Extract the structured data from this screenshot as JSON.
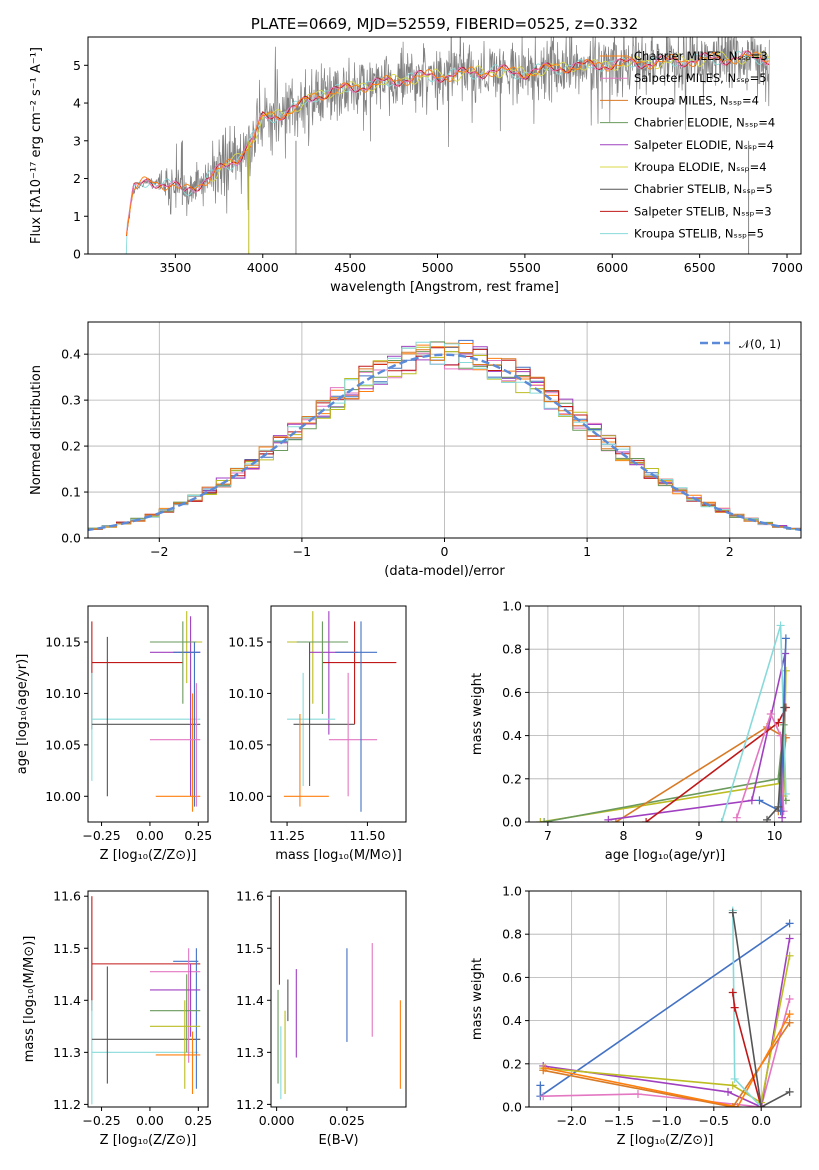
{
  "colors": {
    "palette": [
      "#4472c4",
      "#ff7f0e",
      "#e377c2",
      "#8c8c8c",
      "#2ca02c",
      "#9467bd",
      "#bcbd22",
      "#ff9896",
      "#17becf"
    ],
    "models": [
      "#ff7f0e",
      "#e377c2",
      "#d97a25",
      "#6a9a5c",
      "#a040c0",
      "#d8d84a",
      "#555555",
      "#c01818",
      "#88dada"
    ],
    "data_line": "#808080",
    "gaussian": "#5a8ad8"
  },
  "chart_data": [
    {
      "id": "spectrum",
      "type": "line",
      "title": "PLATE=0669, MJD=52559, FIBERID=0525, z=0.332",
      "xlabel": "wavelength [Angstrom, rest frame]",
      "ylabel": "Flux [fλ10⁻¹⁷ erg cm⁻² s⁻¹ A⁻¹]",
      "xlim": [
        3000,
        7080
      ],
      "ylim": [
        0,
        5.75
      ],
      "xticks": [
        "3500",
        "4000",
        "4500",
        "5000",
        "5500",
        "6000",
        "6500",
        "7000"
      ],
      "yticks": [
        "0",
        "1",
        "2",
        "3",
        "4",
        "5"
      ],
      "grid": false,
      "legend_placement": "top-right",
      "series": [
        {
          "name": "Chabrier MILES, Nₛₛₚ=3"
        },
        {
          "name": "Salpeter MILES, Nₛₛₚ=5"
        },
        {
          "name": "Kroupa MILES, Nₛₛₚ=4"
        },
        {
          "name": "Chabrier ELODIE, Nₛₛₚ=4"
        },
        {
          "name": "Salpeter ELODIE, Nₛₛₚ=4"
        },
        {
          "name": "Kroupa ELODIE, Nₛₛₚ=4"
        },
        {
          "name": "Chabrier STELIB, Nₛₛₚ=5"
        },
        {
          "name": "Salpeter STELIB, Nₛₛₚ=3"
        },
        {
          "name": "Kroupa STELIB, Nₛₛₚ=5"
        }
      ],
      "continuum": {
        "x": [
          3200,
          3260,
          3350,
          3450,
          3550,
          3650,
          3750,
          3850,
          3950,
          4000,
          4100,
          4200,
          4300,
          4400,
          4500,
          4700,
          4900,
          5100,
          5300,
          5500,
          5700,
          5900,
          6100,
          6300,
          6500,
          6700,
          6900
        ],
        "y": [
          0,
          1.7,
          1.95,
          1.85,
          1.65,
          1.9,
          2.2,
          2.5,
          3.1,
          3.6,
          3.7,
          3.9,
          4.2,
          4.3,
          4.4,
          4.55,
          4.7,
          4.75,
          4.85,
          4.8,
          4.95,
          5.0,
          5.05,
          5.1,
          5.15,
          5.2,
          5.2
        ]
      }
    },
    {
      "id": "residuals",
      "type": "area",
      "xlabel": "(data-model)/error",
      "ylabel": "Normed distribution",
      "xlim": [
        -2.5,
        2.5
      ],
      "ylim": [
        0,
        0.47
      ],
      "xticks": [
        "−2",
        "−1",
        "0",
        "1",
        "2"
      ],
      "yticks": [
        "0.0",
        "0.1",
        "0.2",
        "0.3",
        "0.4"
      ],
      "grid": true,
      "legend_placement": "top-right",
      "gaussian_label": "𝒩(0, 1)"
    },
    {
      "id": "age-vs-Z",
      "type": "scatter",
      "xlabel": "Z [log₁₀(Z/Z⊙)]",
      "ylabel": "age  [log₁₀(age/yr)]",
      "xlim": [
        -0.32,
        0.3
      ],
      "ylim": [
        9.975,
        10.185
      ],
      "xticks": [
        "−0.25",
        "0.00",
        "0.25"
      ],
      "yticks": [
        "10.00",
        "10.05",
        "10.10",
        "10.15"
      ]
    },
    {
      "id": "age-vs-mass",
      "type": "scatter",
      "xlabel": "mass [log₁₀(M/M⊙)]",
      "ylabel": "",
      "xlim": [
        11.2,
        11.62
      ],
      "ylim": [
        9.975,
        10.185
      ],
      "xticks": [
        "11.25",
        "11.50"
      ],
      "yticks": [
        "10.00",
        "10.05",
        "10.10",
        "10.15"
      ]
    },
    {
      "id": "massweight-vs-age",
      "type": "line",
      "xlabel": "age  [log₁₀(age/yr)]",
      "ylabel": "mass weight",
      "xlim": [
        6.75,
        10.35
      ],
      "ylim": [
        0,
        1
      ],
      "xticks": [
        "7",
        "8",
        "9",
        "10"
      ],
      "yticks": [
        "0.0",
        "0.2",
        "0.4",
        "0.6",
        "0.8",
        "1.0"
      ],
      "grid": true
    },
    {
      "id": "mass-vs-Z",
      "type": "scatter",
      "xlabel": "Z [log₁₀(Z/Z⊙)]",
      "ylabel": "mass [log₁₀(M/M⊙)]",
      "xlim": [
        -0.32,
        0.3
      ],
      "ylim": [
        11.195,
        11.61
      ],
      "xticks": [
        "−0.25",
        "0.00",
        "0.25"
      ],
      "yticks": [
        "11.2",
        "11.3",
        "11.4",
        "11.5",
        "11.6"
      ]
    },
    {
      "id": "mass-vs-EBV",
      "type": "scatter",
      "xlabel": "E(B-V)",
      "ylabel": "",
      "xlim": [
        -0.002,
        0.046
      ],
      "ylim": [
        11.195,
        11.61
      ],
      "xticks": [
        "0.000",
        "0.025"
      ],
      "yticks": [
        "11.2",
        "11.3",
        "11.4",
        "11.5",
        "11.6"
      ]
    },
    {
      "id": "massweight-vs-Z",
      "type": "line",
      "xlabel": "Z [log₁₀(Z/Z⊙)]",
      "ylabel": "mass weight",
      "xlim": [
        -2.45,
        0.42
      ],
      "ylim": [
        0,
        1
      ],
      "xticks": [
        "−2.0",
        "−1.5",
        "−1.0",
        "−0.5",
        "0.0"
      ],
      "yticks": [
        "0.0",
        "0.2",
        "0.4",
        "0.6",
        "0.8",
        "1.0"
      ],
      "grid": true
    }
  ]
}
